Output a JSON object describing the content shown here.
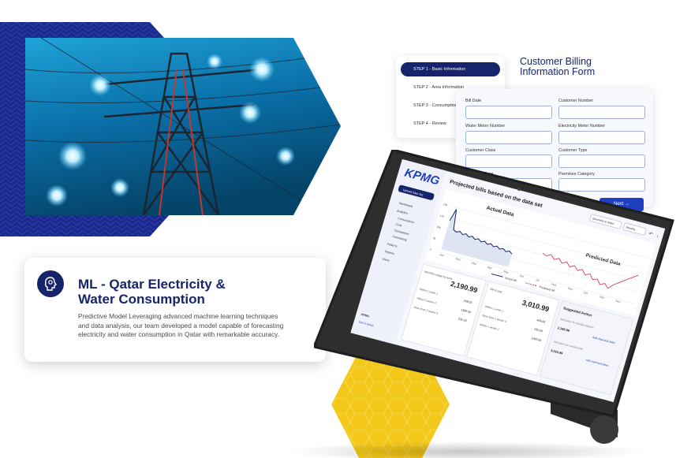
{
  "card": {
    "title_line1": "ML - Qatar Electricity &",
    "title_line2": "Water Consumption",
    "body_line1": "Predictive Model Leveraging advanced machine learning techniques",
    "body_line2": "and data analysis, our team developed a model capable of forecasting",
    "body_line3": "electricity and water consumption in Qatar with remarkable accuracy.",
    "icon": "brain-gear-icon"
  },
  "stepper": {
    "steps": [
      "STEP 1 - Basic Information",
      "STEP 2 - Area Information",
      "STEP 3 - Consumption",
      "STEP 4 - Review"
    ]
  },
  "form": {
    "title_line1": "Customer Billing",
    "title_line2": "Information Form",
    "fields": [
      "Bill Date",
      "Customer Number",
      "Water Meter Number",
      "Electricity Meter Number",
      "Customer Class",
      "Customer Type",
      "Premises Type",
      "Premises Category"
    ],
    "next_label": "Next →"
  },
  "dashboard": {
    "logo": "KPMG",
    "upload_label": "Upload Data Set",
    "nav": [
      "Dashboard",
      "Analytics",
      "Consumption",
      "Cost",
      "Comparison",
      "Forecasting",
      "Patterns",
      "Reports",
      "Alerts"
    ],
    "header": "Projected bills based on the data set",
    "filter1": "Electricity & Water",
    "filter2": "Monthly",
    "chart_actual_title": "Actual Data",
    "chart_predicted_title": "Predicted Data",
    "legend_actual": "Actual bill",
    "legend_predicted": "Predicted bill",
    "months_left": [
      "Jan",
      "Feb",
      "Mar",
      "Apr",
      "May",
      "Jun"
    ],
    "months_right": [
      "Jul",
      "Aug",
      "Sep",
      "Oct",
      "Nov",
      "Dec"
    ],
    "y_ticks": [
      "15k",
      "12k",
      "10k",
      "5k",
      "0"
    ],
    "panel1_title": "Monthly usage by area",
    "panel1_value": "2,190.99",
    "panel1_rows": [
      "Within 1 week 1",
      "Within 2 weeks 2",
      "More than 2 weeks 3"
    ],
    "panel1_vals": [
      "209.00",
      "1380.00",
      "232.00"
    ],
    "panel2_title": "Bill to pay",
    "panel2_value": "3,010.99",
    "panel2_rows": [
      "Within 1 week 1",
      "More than 2 weeks 3",
      "Within 2 weeks 2"
    ],
    "panel2_vals": [
      "409.00",
      "232.00",
      "1400.00"
    ],
    "panel3_title": "Suggested Action",
    "panel3_text1": "Add status for overdue balance",
    "panel3_value1": "2,190.99",
    "panel3_link1": "Add expected dates",
    "panel3_text2": "Add status for overdue bills",
    "panel3_value2": "3,010.99",
    "panel3_link2": "Add expected dates",
    "side_footer_title": "KPMG",
    "side_footer_link": "Get in touch"
  },
  "colors": {
    "navy": "#16246b",
    "blue": "#1e3fbf",
    "yellow": "#f3c81a"
  }
}
